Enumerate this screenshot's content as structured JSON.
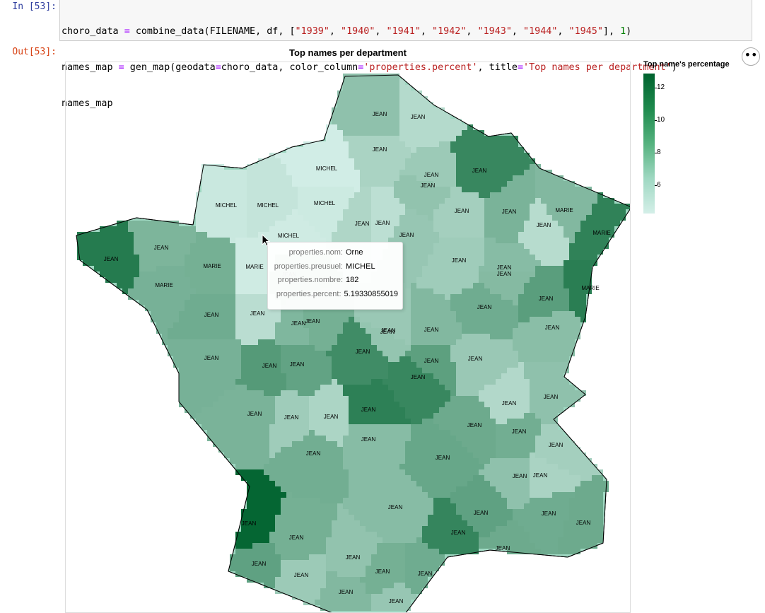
{
  "cell": {
    "in_prompt": "In [53]:",
    "out_prompt": "Out[53]:",
    "code": {
      "l1_var": "choro_data",
      "l1_eq": "=",
      "l1_call": "combine_data(FILENAME, df, [",
      "l1_years": [
        "\"1939\"",
        "\"1940\"",
        "\"1941\"",
        "\"1942\"",
        "\"1943\"",
        "\"1944\"",
        "\"1945\""
      ],
      "l1_tail_num": "1",
      "l2_var": "names_map",
      "l2_eq": "=",
      "l2_call": "gen_map(geodata",
      "l2_arg1": "choro_data, color_column",
      "l2_str1": "'properties.percent'",
      "l2_mid": ", title",
      "l2_str2": "'Top names per department'",
      "l3": "names_map"
    }
  },
  "chart_data": {
    "type": "choropleth",
    "title": "Top names per department",
    "legend": {
      "title": "Top name's percentage",
      "ticks": [
        "12",
        "10",
        "8",
        "6"
      ],
      "color_low": "#d4efe8",
      "color_high": "#00622e"
    },
    "regions": [
      {
        "label": "JEAN",
        "percent": 7.6
      },
      {
        "label": "JEAN",
        "percent": 6.2
      },
      {
        "label": "JEAN",
        "percent": 6.6
      },
      {
        "label": "MICHEL",
        "percent": 5.1
      },
      {
        "label": "JEAN",
        "percent": 10.9
      },
      {
        "label": "JEAN",
        "percent": 7.5
      },
      {
        "label": "JEAN",
        "percent": 7.1
      },
      {
        "label": "MICHEL",
        "percent": 5.4
      },
      {
        "label": "MICHEL",
        "percent": 5.6
      },
      {
        "label": "MICHEL",
        "percent": 5.3
      },
      {
        "label": "MICHEL",
        "percent": 5.2
      },
      {
        "label": "JEAN",
        "percent": 6.4
      },
      {
        "label": "JEAN",
        "percent": 5.9
      },
      {
        "label": "JEAN",
        "percent": 7.3
      },
      {
        "label": "JEAN",
        "percent": 6.8
      },
      {
        "label": "JEAN",
        "percent": 8.4
      },
      {
        "label": "MARIE",
        "percent": 8.1
      },
      {
        "label": "JEAN",
        "percent": 6.1
      },
      {
        "label": "MARIE",
        "percent": 11.2
      },
      {
        "label": "JEAN",
        "percent": 11.6
      },
      {
        "label": "JEAN",
        "percent": 8.3
      },
      {
        "label": "MARIE",
        "percent": 8.6
      },
      {
        "label": "MARIE",
        "percent": 5.2
      },
      {
        "label": "MARIE",
        "percent": 8.5
      },
      {
        "label": "JEAN",
        "percent": 9.2
      },
      {
        "label": "JEAN",
        "percent": 6.0
      },
      {
        "label": "JEAN",
        "percent": 8.8
      },
      {
        "label": "MARIE",
        "percent": 11.4
      },
      {
        "label": "JEAN",
        "percent": 8.2
      },
      {
        "label": "JEAN",
        "percent": 8.6
      },
      {
        "label": "JEAN",
        "percent": 7.4
      },
      {
        "label": "JEAN",
        "percent": 8.1
      },
      {
        "label": "JEAN",
        "percent": 7.0
      },
      {
        "label": "JEAN",
        "percent": 8.0
      },
      {
        "label": "JEAN",
        "percent": 9.6
      },
      {
        "label": "JEAN",
        "percent": 8.8
      },
      {
        "label": "JEAN",
        "percent": 7.9
      },
      {
        "label": "JEAN",
        "percent": 7.8
      },
      {
        "label": "JEAN",
        "percent": 8.5
      },
      {
        "label": "JEAN",
        "percent": 9.8
      },
      {
        "label": "JEAN",
        "percent": 9.3
      },
      {
        "label": "JEAN",
        "percent": 10.6
      },
      {
        "label": "JEAN",
        "percent": 7.2
      },
      {
        "label": "JEAN",
        "percent": 9.5
      },
      {
        "label": "JEAN",
        "percent": 7.2
      },
      {
        "label": "JEAN",
        "percent": 11.3
      },
      {
        "label": "JEAN",
        "percent": 6.5
      },
      {
        "label": "JEAN",
        "percent": 7.0
      },
      {
        "label": "JEAN",
        "percent": 8.4
      },
      {
        "label": "JEAN",
        "percent": 7.9
      },
      {
        "label": "JEAN",
        "percent": 10.9
      },
      {
        "label": "JEAN",
        "percent": 8.9
      },
      {
        "label": "JEAN",
        "percent": 6.3
      },
      {
        "label": "JEAN",
        "percent": 7.6
      },
      {
        "label": "JEAN",
        "percent": 8.7
      },
      {
        "label": "JEAN",
        "percent": 6.8
      },
      {
        "label": "JEAN",
        "percent": 7.6
      },
      {
        "label": "JEAN",
        "percent": 6.6
      },
      {
        "label": "JEAN",
        "percent": 9.1
      },
      {
        "label": "JEAN",
        "percent": 7.9
      },
      {
        "label": "JEAN",
        "percent": 8.7
      },
      {
        "label": "JEAN",
        "percent": 12.8
      },
      {
        "label": "JEAN",
        "percent": 9.4
      },
      {
        "label": "JEAN",
        "percent": 8.6
      },
      {
        "label": "JEAN",
        "percent": 7.1
      },
      {
        "label": "JEAN",
        "percent": 7.5
      },
      {
        "label": "JEAN",
        "percent": 8.6
      },
      {
        "label": "JEAN",
        "percent": 8.1
      },
      {
        "label": "JEAN",
        "percent": 7.3
      },
      {
        "label": "JEAN",
        "percent": 8.8
      },
      {
        "label": "JEAN",
        "percent": 11.0
      },
      {
        "label": "JEAN",
        "percent": 9.4
      },
      {
        "label": "JEAN",
        "percent": 8.9
      },
      {
        "label": "JEAN",
        "percent": 8.8
      },
      {
        "label": "JEAN",
        "percent": 8.9
      }
    ],
    "tooltip": {
      "rows": [
        {
          "key": "properties.nom:",
          "value": "Orne"
        },
        {
          "key": "properties.preusuel:",
          "value": "MICHEL"
        },
        {
          "key": "properties.nombre:",
          "value": "182"
        },
        {
          "key": "properties.percent:",
          "value": "5.19330855019"
        }
      ]
    }
  },
  "actions_icon": "ellipsis-icon"
}
